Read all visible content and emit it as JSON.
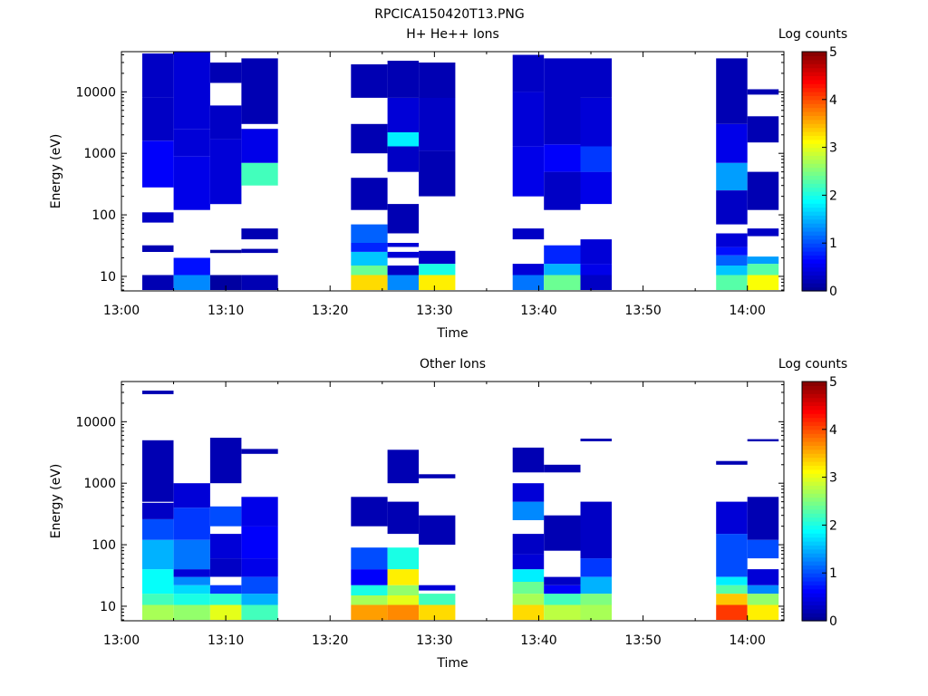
{
  "figure": {
    "title": "RPCICA150420T13.PNG"
  },
  "colors": {
    "background": "#ffffff",
    "axis": "#000000",
    "colormap": [
      "#00008f",
      "#0000ff",
      "#007fff",
      "#00ffff",
      "#7fff7f",
      "#ffff00",
      "#ff7f00",
      "#ff0000",
      "#7f0000"
    ]
  },
  "chart_data": [
    {
      "type": "heatmap",
      "title": "H+ He++ Ions",
      "xlabel": "Time",
      "ylabel": "Energy (eV)",
      "x_ticks": [
        "13:00",
        "13:10",
        "13:20",
        "13:30",
        "13:40",
        "13:50",
        "14:00"
      ],
      "y_ticks": [
        "10",
        "100",
        "1000",
        "10000"
      ],
      "y_scale": "log",
      "y_range_eV": [
        5.8,
        45000
      ],
      "x_range": [
        "13:00",
        "14:03.5"
      ],
      "colorbar": {
        "label": "Log counts",
        "range": [
          0,
          5
        ],
        "ticks": [
          "0",
          "1",
          "2",
          "3",
          "4",
          "5"
        ]
      },
      "columns": [
        {
          "start": "13:02",
          "end": "13:05",
          "cells": [
            [
              6,
              10.5,
              0.2
            ],
            [
              25,
              32,
              0.2
            ],
            [
              75,
              110,
              0.3
            ],
            [
              280,
              1600,
              0.6
            ],
            [
              1600,
              8000,
              0.3
            ],
            [
              8000,
              42000,
              0.3
            ]
          ]
        },
        {
          "start": "13:05",
          "end": "13:08.5",
          "cells": [
            [
              6,
              10.5,
              1.3
            ],
            [
              10.5,
              20,
              0.7
            ],
            [
              120,
              900,
              0.5
            ],
            [
              900,
              2500,
              0.4
            ],
            [
              2500,
              45000,
              0.4
            ]
          ]
        },
        {
          "start": "13:08.5",
          "end": "13:11.5",
          "cells": [
            [
              6,
              10.5,
              0.1
            ],
            [
              24,
              27,
              0.1
            ],
            [
              150,
              1700,
              0.4
            ],
            [
              1700,
              6000,
              0.3
            ],
            [
              14000,
              30000,
              0.2
            ]
          ]
        },
        {
          "start": "13:11.5",
          "end": "13:15",
          "cells": [
            [
              6,
              10.5,
              0.2
            ],
            [
              24,
              28,
              0.2
            ],
            [
              40,
              60,
              0.2
            ],
            [
              300,
              700,
              2.2
            ],
            [
              700,
              2500,
              0.5
            ],
            [
              3000,
              35000,
              0.2
            ]
          ]
        },
        {
          "start": "13:22",
          "end": "13:25.5",
          "cells": [
            [
              6,
              10.5,
              3.3
            ],
            [
              10.5,
              15,
              2.4
            ],
            [
              15,
              25,
              1.6
            ],
            [
              25,
              35,
              0.8
            ],
            [
              35,
              70,
              1.1
            ],
            [
              120,
              400,
              0.2
            ],
            [
              1000,
              3000,
              0.2
            ],
            [
              8000,
              28000,
              0.2
            ]
          ]
        },
        {
          "start": "13:25.5",
          "end": "13:28.5",
          "cells": [
            [
              6,
              10.5,
              1.3
            ],
            [
              10.5,
              15,
              0.3
            ],
            [
              20,
              25,
              0.4
            ],
            [
              30,
              35,
              0.4
            ],
            [
              50,
              150,
              0.2
            ],
            [
              500,
              1300,
              0.3
            ],
            [
              1300,
              2200,
              1.8
            ],
            [
              2200,
              8000,
              0.4
            ],
            [
              8000,
              32000,
              0.2
            ]
          ]
        },
        {
          "start": "13:28.5",
          "end": "13:32",
          "cells": [
            [
              6,
              10.5,
              3.2
            ],
            [
              10.5,
              16,
              2.0
            ],
            [
              16,
              26,
              0.3
            ],
            [
              200,
              1100,
              0.2
            ],
            [
              1100,
              8000,
              0.3
            ],
            [
              8000,
              30000,
              0.2
            ]
          ]
        },
        {
          "start": "13:37.5",
          "end": "13:40.5",
          "cells": [
            [
              6,
              10.5,
              1.2
            ],
            [
              10.5,
              16,
              0.4
            ],
            [
              40,
              60,
              0.3
            ],
            [
              200,
              1300,
              0.5
            ],
            [
              1300,
              10000,
              0.4
            ],
            [
              10000,
              40000,
              0.3
            ]
          ]
        },
        {
          "start": "13:40.5",
          "end": "13:44",
          "cells": [
            [
              6,
              10.5,
              2.4
            ],
            [
              10.5,
              16,
              1.5
            ],
            [
              16,
              32,
              0.8
            ],
            [
              120,
              500,
              0.3
            ],
            [
              500,
              1400,
              0.6
            ],
            [
              1400,
              35000,
              0.3
            ]
          ]
        },
        {
          "start": "13:44",
          "end": "13:47",
          "cells": [
            [
              6,
              10.5,
              0.3
            ],
            [
              10.5,
              16,
              0.5
            ],
            [
              16,
              40,
              0.4
            ],
            [
              150,
              500,
              0.5
            ],
            [
              500,
              1300,
              0.9
            ],
            [
              1300,
              8000,
              0.4
            ],
            [
              8000,
              35000,
              0.3
            ]
          ]
        },
        {
          "start": "13:57",
          "end": "14:00",
          "cells": [
            [
              6,
              10.5,
              2.3
            ],
            [
              10.5,
              15,
              1.6
            ],
            [
              15,
              22,
              1.1
            ],
            [
              22,
              30,
              0.7
            ],
            [
              30,
              50,
              0.4
            ],
            [
              70,
              250,
              0.3
            ],
            [
              250,
              700,
              1.4
            ],
            [
              700,
              3000,
              0.5
            ],
            [
              3000,
              35000,
              0.2
            ]
          ]
        },
        {
          "start": "14:00",
          "end": "14:03",
          "cells": [
            [
              6,
              10.5,
              3.1
            ],
            [
              10.5,
              16,
              2.3
            ],
            [
              16,
              21,
              1.4
            ],
            [
              45,
              60,
              0.3
            ],
            [
              120,
              500,
              0.2
            ],
            [
              1500,
              4000,
              0.2
            ],
            [
              9000,
              11000,
              0.2
            ]
          ]
        }
      ]
    },
    {
      "type": "heatmap",
      "title": "Other Ions",
      "xlabel": "Time",
      "ylabel": "Energy (eV)",
      "x_ticks": [
        "13:00",
        "13:10",
        "13:20",
        "13:30",
        "13:40",
        "13:50",
        "14:00"
      ],
      "y_ticks": [
        "10",
        "100",
        "1000",
        "10000"
      ],
      "y_scale": "log",
      "y_range_eV": [
        5.8,
        45000
      ],
      "x_range": [
        "13:00",
        "14:03.5"
      ],
      "colorbar": {
        "label": "Log counts",
        "range": [
          0,
          5
        ],
        "ticks": [
          "0",
          "1",
          "2",
          "3",
          "4",
          "5"
        ]
      },
      "columns": [
        {
          "start": "13:02",
          "end": "13:05",
          "cells": [
            [
              6,
              10.5,
              2.7
            ],
            [
              10.5,
              16,
              2.2
            ],
            [
              16,
              40,
              1.9
            ],
            [
              40,
              120,
              1.5
            ],
            [
              120,
              260,
              1.0
            ],
            [
              260,
              480,
              0.3
            ],
            [
              500,
              5000,
              0.2
            ],
            [
              28000,
              32000,
              0.2
            ]
          ]
        },
        {
          "start": "13:05",
          "end": "13:08.5",
          "cells": [
            [
              6,
              10.5,
              2.6
            ],
            [
              10.5,
              16,
              2.0
            ],
            [
              16,
              22,
              1.7
            ],
            [
              22,
              30,
              1.3
            ],
            [
              30,
              40,
              0.4
            ],
            [
              40,
              120,
              1.2
            ],
            [
              120,
              400,
              0.9
            ],
            [
              400,
              1000,
              0.4
            ]
          ]
        },
        {
          "start": "13:08.5",
          "end": "13:11.5",
          "cells": [
            [
              6,
              10.5,
              3.0
            ],
            [
              10.5,
              16,
              2.1
            ],
            [
              16,
              22,
              0.9
            ],
            [
              30,
              60,
              0.3
            ],
            [
              60,
              150,
              0.4
            ],
            [
              200,
              420,
              1.0
            ],
            [
              1000,
              5500,
              0.2
            ]
          ]
        },
        {
          "start": "13:11.5",
          "end": "13:15",
          "cells": [
            [
              6,
              10.5,
              2.2
            ],
            [
              10.5,
              16,
              1.5
            ],
            [
              16,
              30,
              1.0
            ],
            [
              30,
              60,
              0.5
            ],
            [
              60,
              200,
              0.6
            ],
            [
              200,
              600,
              0.5
            ],
            [
              3000,
              3600,
              0.2
            ]
          ]
        },
        {
          "start": "13:22",
          "end": "13:25.5",
          "cells": [
            [
              6,
              10.5,
              3.6
            ],
            [
              10.5,
              15,
              2.7
            ],
            [
              15,
              22,
              2.0
            ],
            [
              22,
              40,
              0.6
            ],
            [
              40,
              90,
              1.0
            ],
            [
              200,
              600,
              0.2
            ]
          ]
        },
        {
          "start": "13:25.5",
          "end": "13:28.5",
          "cells": [
            [
              6,
              10.5,
              3.7
            ],
            [
              10.5,
              15,
              3.0
            ],
            [
              15,
              22,
              2.6
            ],
            [
              22,
              40,
              3.2
            ],
            [
              40,
              90,
              2.0
            ],
            [
              150,
              500,
              0.2
            ],
            [
              1000,
              3500,
              0.2
            ]
          ]
        },
        {
          "start": "13:28.5",
          "end": "13:32",
          "cells": [
            [
              6,
              10.5,
              3.3
            ],
            [
              10.5,
              16,
              2.2
            ],
            [
              18,
              22,
              0.4
            ],
            [
              100,
              300,
              0.2
            ],
            [
              1200,
              1400,
              0.2
            ]
          ]
        },
        {
          "start": "13:37.5",
          "end": "13:40.5",
          "cells": [
            [
              6,
              10.5,
              3.3
            ],
            [
              10.5,
              16,
              2.7
            ],
            [
              16,
              25,
              2.4
            ],
            [
              25,
              40,
              1.8
            ],
            [
              40,
              70,
              0.4
            ],
            [
              70,
              150,
              0.3
            ],
            [
              250,
              500,
              1.3
            ],
            [
              500,
              1000,
              0.4
            ],
            [
              1500,
              3800,
              0.2
            ]
          ]
        },
        {
          "start": "13:40.5",
          "end": "13:44",
          "cells": [
            [
              6,
              10.5,
              2.8
            ],
            [
              10.5,
              16,
              2.2
            ],
            [
              16,
              22,
              0.6
            ],
            [
              22,
              30,
              0.3
            ],
            [
              80,
              300,
              0.2
            ],
            [
              1500,
              2000,
              0.2
            ]
          ]
        },
        {
          "start": "13:44",
          "end": "13:47",
          "cells": [
            [
              6,
              10.5,
              2.7
            ],
            [
              10.5,
              16,
              2.5
            ],
            [
              16,
              30,
              1.5
            ],
            [
              30,
              60,
              0.9
            ],
            [
              60,
              500,
              0.3
            ],
            [
              4800,
              5300,
              0.2
            ]
          ]
        },
        {
          "start": "13:57",
          "end": "14:00",
          "cells": [
            [
              6,
              10.5,
              4.1
            ],
            [
              10.5,
              16,
              3.4
            ],
            [
              16,
              22,
              2.3
            ],
            [
              22,
              30,
              1.8
            ],
            [
              30,
              150,
              1.0
            ],
            [
              150,
              500,
              0.4
            ],
            [
              2000,
              2300,
              0.2
            ]
          ]
        },
        {
          "start": "14:00",
          "end": "14:03",
          "cells": [
            [
              6,
              10.5,
              3.2
            ],
            [
              10.5,
              16,
              2.6
            ],
            [
              16,
              22,
              1.3
            ],
            [
              22,
              40,
              0.4
            ],
            [
              60,
              120,
              1.0
            ],
            [
              120,
              600,
              0.2
            ],
            [
              4800,
              5200,
              0.2
            ]
          ]
        }
      ]
    }
  ]
}
